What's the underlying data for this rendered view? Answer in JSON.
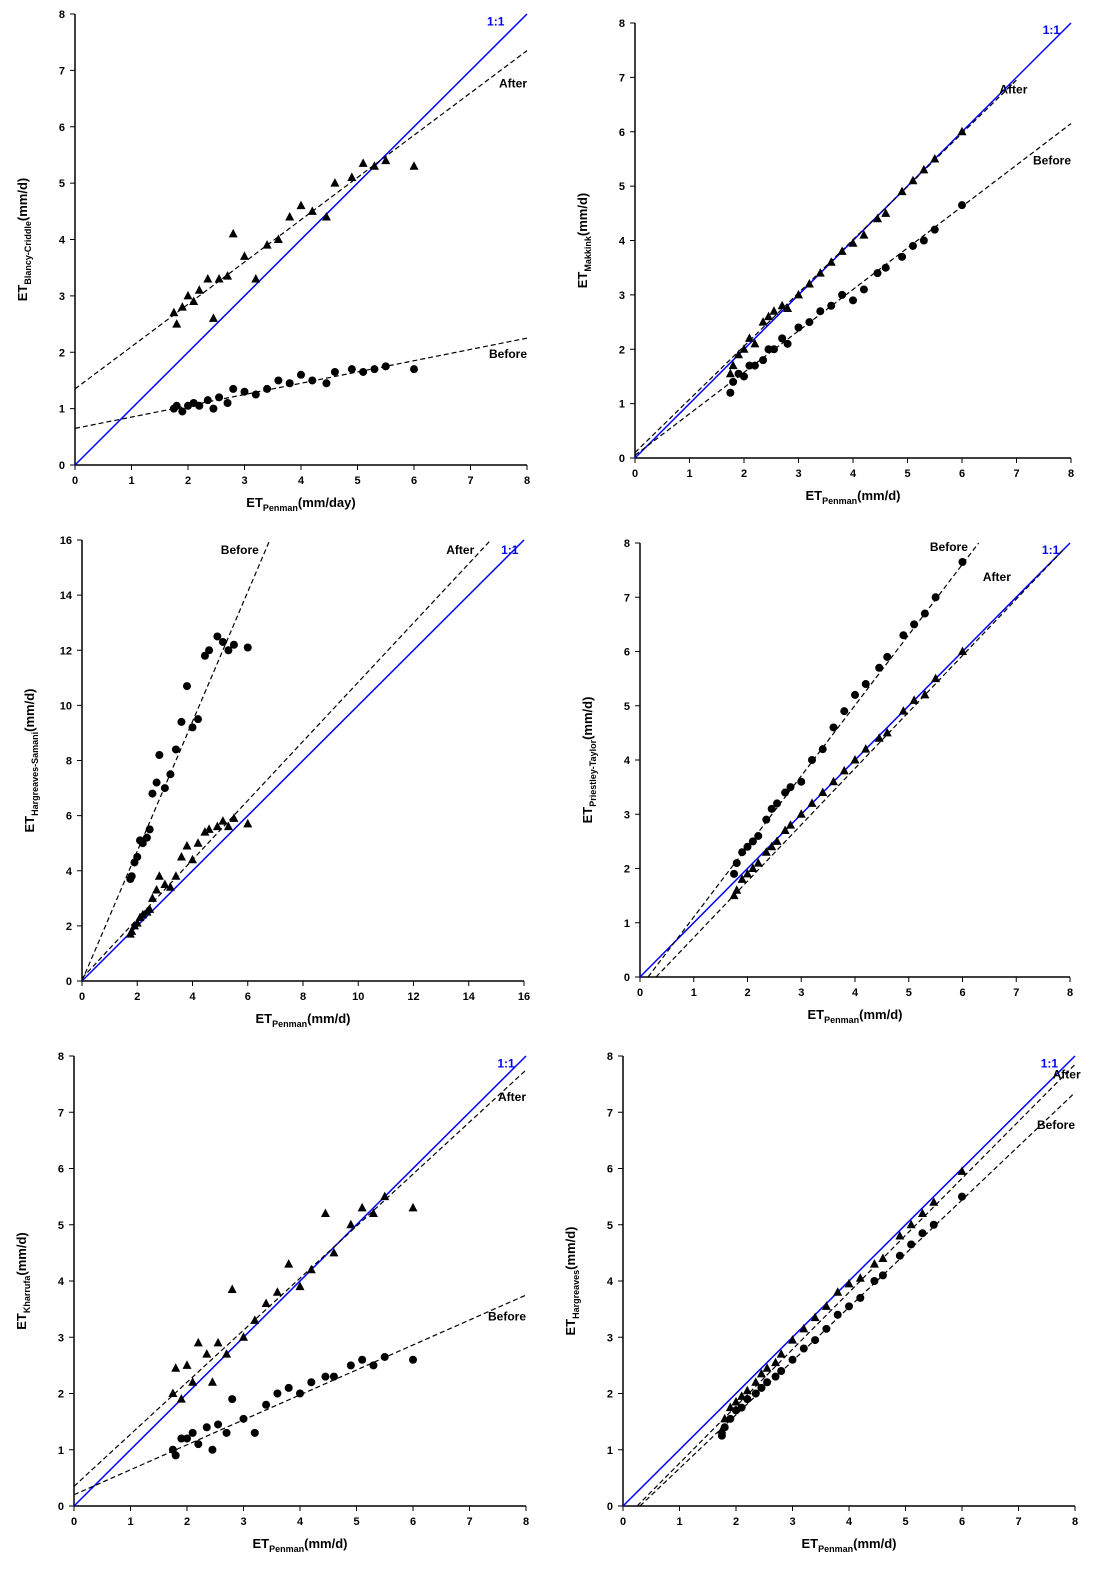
{
  "chart_data": [
    {
      "type": "scatter",
      "xlabel": [
        "ET",
        "Penman",
        "(mm/day)"
      ],
      "ylabel": [
        "ET",
        "Blancy-Criddle",
        "(mm/d)"
      ],
      "xlim": [
        0,
        8
      ],
      "ylim": [
        0,
        8
      ],
      "xticks": [
        0,
        1,
        2,
        3,
        4,
        5,
        6,
        7,
        8
      ],
      "yticks": [
        0,
        1,
        2,
        3,
        4,
        5,
        6,
        7,
        8
      ],
      "x": [
        1.75,
        1.8,
        1.9,
        2.0,
        2.1,
        2.2,
        2.35,
        2.45,
        2.55,
        2.7,
        2.8,
        3.0,
        3.2,
        3.4,
        3.6,
        3.8,
        4.0,
        4.2,
        4.45,
        4.6,
        4.9,
        5.1,
        5.3,
        5.5,
        6.0
      ],
      "series": [
        {
          "name": "After",
          "marker": "triangle",
          "color": "#000000",
          "values": [
            2.7,
            2.5,
            2.8,
            3.0,
            2.9,
            3.1,
            3.3,
            2.6,
            3.3,
            3.35,
            4.1,
            3.7,
            3.3,
            3.9,
            4.0,
            4.4,
            4.6,
            4.5,
            4.4,
            5.0,
            5.1,
            5.35,
            5.3,
            5.4,
            5.3
          ],
          "fit": {
            "x": [
              0,
              8
            ],
            "values": [
              1.35,
              7.35
            ]
          }
        },
        {
          "name": "Before",
          "marker": "circle",
          "color": "#000000",
          "values": [
            1.0,
            1.05,
            0.95,
            1.05,
            1.1,
            1.05,
            1.15,
            1.0,
            1.2,
            1.1,
            1.35,
            1.3,
            1.25,
            1.35,
            1.5,
            1.45,
            1.6,
            1.5,
            1.45,
            1.65,
            1.7,
            1.65,
            1.7,
            1.75,
            1.7
          ],
          "fit": {
            "x": [
              0,
              8
            ],
            "values": [
              0.65,
              2.25
            ]
          }
        }
      ],
      "identity": {
        "name": "1:1",
        "color": "#0000ff",
        "x": [
          0,
          8
        ],
        "values": [
          0,
          8
        ]
      }
    },
    {
      "type": "scatter",
      "xlabel": [
        "ET",
        "Penman",
        "(mm/d)"
      ],
      "ylabel": [
        "ET",
        "Makkink",
        "(mm/d)"
      ],
      "xlim": [
        0,
        8
      ],
      "ylim": [
        0,
        8
      ],
      "xticks": [
        0,
        1,
        2,
        3,
        4,
        5,
        6,
        7,
        8
      ],
      "yticks": [
        0,
        1,
        2,
        3,
        4,
        5,
        6,
        7,
        8
      ],
      "x": [
        1.75,
        1.8,
        1.9,
        2.0,
        2.1,
        2.2,
        2.35,
        2.45,
        2.55,
        2.7,
        2.8,
        3.0,
        3.2,
        3.4,
        3.6,
        3.8,
        4.0,
        4.2,
        4.45,
        4.6,
        4.9,
        5.1,
        5.3,
        5.5,
        6.0
      ],
      "series": [
        {
          "name": "After",
          "marker": "triangle",
          "color": "#000000",
          "values": [
            1.55,
            1.7,
            1.9,
            2.0,
            2.2,
            2.1,
            2.5,
            2.6,
            2.7,
            2.8,
            2.75,
            3.0,
            3.2,
            3.4,
            3.6,
            3.8,
            3.95,
            4.1,
            4.4,
            4.5,
            4.9,
            5.1,
            5.3,
            5.5,
            6.0
          ],
          "fit": {
            "x": [
              0,
              7
            ],
            "values": [
              0.1,
              6.95
            ]
          }
        },
        {
          "name": "Before",
          "marker": "circle",
          "color": "#000000",
          "values": [
            1.2,
            1.4,
            1.55,
            1.5,
            1.7,
            1.7,
            1.8,
            2.0,
            2.0,
            2.2,
            2.1,
            2.4,
            2.5,
            2.7,
            2.8,
            3.0,
            2.9,
            3.1,
            3.4,
            3.5,
            3.7,
            3.9,
            4.0,
            4.2,
            4.65
          ],
          "fit": {
            "x": [
              0,
              8
            ],
            "values": [
              0.05,
              6.15
            ]
          }
        }
      ],
      "identity": {
        "name": "1:1",
        "color": "#0000ff",
        "x": [
          0,
          8
        ],
        "values": [
          0,
          8
        ]
      }
    },
    {
      "type": "scatter",
      "xlabel": [
        "ET",
        "Penman",
        "(mm/d)"
      ],
      "ylabel": [
        "ET",
        "Hargreaves-Samani",
        "(mm/d)"
      ],
      "xlim": [
        0,
        16
      ],
      "ylim": [
        0,
        16
      ],
      "xticks": [
        0,
        2,
        4,
        6,
        8,
        10,
        12,
        14,
        16
      ],
      "yticks": [
        0,
        2,
        4,
        6,
        8,
        10,
        12,
        14,
        16
      ],
      "x": [
        1.75,
        1.8,
        1.9,
        2.0,
        2.1,
        2.2,
        2.35,
        2.45,
        2.55,
        2.7,
        2.8,
        3.0,
        3.2,
        3.4,
        3.6,
        3.8,
        4.0,
        4.2,
        4.45,
        4.6,
        4.9,
        5.1,
        5.3,
        5.5,
        6.0
      ],
      "series": [
        {
          "name": "After",
          "marker": "triangle",
          "color": "#000000",
          "values": [
            1.7,
            1.8,
            2.0,
            2.1,
            2.3,
            2.4,
            2.5,
            2.6,
            3.0,
            3.3,
            3.8,
            3.5,
            3.4,
            3.8,
            4.5,
            4.9,
            4.4,
            5.0,
            5.4,
            5.5,
            5.6,
            5.8,
            5.6,
            5.9,
            5.7
          ],
          "fit": {
            "x": [
              0,
              14.8
            ],
            "values": [
              0.1,
              16
            ]
          }
        },
        {
          "name": "Before",
          "marker": "circle",
          "color": "#000000",
          "values": [
            3.7,
            3.8,
            4.3,
            4.5,
            5.1,
            5.0,
            5.2,
            5.5,
            6.8,
            7.2,
            8.2,
            7.0,
            7.5,
            8.4,
            9.4,
            10.7,
            9.2,
            9.5,
            11.8,
            12.0,
            12.5,
            12.3,
            12.0,
            12.2,
            12.1
          ],
          "fit": {
            "x": [
              0,
              6.8
            ],
            "values": [
              0,
              16
            ]
          }
        }
      ],
      "identity": {
        "name": "1:1",
        "color": "#0000ff",
        "x": [
          0,
          16
        ],
        "values": [
          0,
          16
        ]
      }
    },
    {
      "type": "scatter",
      "xlabel": [
        "ET",
        "Penman",
        "(mm/d)"
      ],
      "ylabel": [
        "ET",
        "Priestley-Taylor",
        "(mm/d)"
      ],
      "xlim": [
        0,
        8
      ],
      "ylim": [
        0,
        8
      ],
      "xticks": [
        0,
        1,
        2,
        3,
        4,
        5,
        6,
        7,
        8
      ],
      "yticks": [
        0,
        1,
        2,
        3,
        4,
        5,
        6,
        7,
        8
      ],
      "x": [
        1.75,
        1.8,
        1.9,
        2.0,
        2.1,
        2.2,
        2.35,
        2.45,
        2.55,
        2.7,
        2.8,
        3.0,
        3.2,
        3.4,
        3.6,
        3.8,
        4.0,
        4.2,
        4.45,
        4.6,
        4.9,
        5.1,
        5.3,
        5.5,
        6.0
      ],
      "series": [
        {
          "name": "After",
          "marker": "triangle",
          "color": "#000000",
          "values": [
            1.5,
            1.6,
            1.8,
            1.9,
            2.0,
            2.1,
            2.3,
            2.4,
            2.5,
            2.7,
            2.8,
            3.0,
            3.2,
            3.4,
            3.6,
            3.8,
            4.0,
            4.2,
            4.4,
            4.5,
            4.9,
            5.1,
            5.2,
            5.5,
            6.0
          ],
          "fit": {
            "x": [
              0.3,
              7.9
            ],
            "values": [
              0,
              7.9
            ]
          }
        },
        {
          "name": "Before",
          "marker": "circle",
          "color": "#000000",
          "values": [
            1.9,
            2.1,
            2.3,
            2.4,
            2.5,
            2.6,
            2.9,
            3.1,
            3.2,
            3.4,
            3.5,
            3.6,
            4.0,
            4.2,
            4.6,
            4.9,
            5.2,
            5.4,
            5.7,
            5.9,
            6.3,
            6.5,
            6.7,
            7.0,
            7.65
          ],
          "fit": {
            "x": [
              0.15,
              6.3
            ],
            "values": [
              0,
              8
            ]
          }
        }
      ],
      "identity": {
        "name": "1:1",
        "color": "#0000ff",
        "x": [
          0,
          8
        ],
        "values": [
          0,
          8
        ]
      }
    },
    {
      "type": "scatter",
      "xlabel": [
        "ET",
        "Penman",
        "(mm/d)"
      ],
      "ylabel": [
        "ET",
        "Kharrufa",
        "(mm/d)"
      ],
      "xlim": [
        0,
        8
      ],
      "ylim": [
        0,
        8
      ],
      "xticks": [
        0,
        1,
        2,
        3,
        4,
        5,
        6,
        7,
        8
      ],
      "yticks": [
        0,
        1,
        2,
        3,
        4,
        5,
        6,
        7,
        8
      ],
      "x": [
        1.75,
        1.8,
        1.9,
        2.0,
        2.1,
        2.2,
        2.35,
        2.45,
        2.55,
        2.7,
        2.8,
        3.0,
        3.2,
        3.4,
        3.6,
        3.8,
        4.0,
        4.2,
        4.45,
        4.6,
        4.9,
        5.1,
        5.3,
        5.5,
        6.0
      ],
      "series": [
        {
          "name": "After",
          "marker": "triangle",
          "color": "#000000",
          "values": [
            2.0,
            2.45,
            1.9,
            2.5,
            2.2,
            2.9,
            2.7,
            2.2,
            2.9,
            2.7,
            3.85,
            3.0,
            3.3,
            3.6,
            3.8,
            4.3,
            3.9,
            4.2,
            5.2,
            4.5,
            5.0,
            5.3,
            5.2,
            5.5,
            5.3
          ],
          "fit": {
            "x": [
              0,
              8
            ],
            "values": [
              0.35,
              7.75
            ]
          }
        },
        {
          "name": "Before",
          "marker": "circle",
          "color": "#000000",
          "values": [
            1.0,
            0.9,
            1.2,
            1.2,
            1.3,
            1.1,
            1.4,
            1.0,
            1.45,
            1.3,
            1.9,
            1.55,
            1.3,
            1.8,
            2.0,
            2.1,
            2.0,
            2.2,
            2.3,
            2.3,
            2.5,
            2.6,
            2.5,
            2.65,
            2.6
          ],
          "fit": {
            "x": [
              0,
              8
            ],
            "values": [
              0.2,
              3.75
            ]
          }
        }
      ],
      "identity": {
        "name": "1:1",
        "color": "#0000ff",
        "x": [
          0,
          8
        ],
        "values": [
          0,
          8
        ]
      }
    },
    {
      "type": "scatter",
      "xlabel": [
        "ET",
        "Penman",
        "(mm/d)"
      ],
      "ylabel": [
        "ET",
        "Hargreaves",
        "(mm/d)"
      ],
      "xlim": [
        0,
        8
      ],
      "ylim": [
        0,
        8
      ],
      "xticks": [
        0,
        1,
        2,
        3,
        4,
        5,
        6,
        7,
        8
      ],
      "yticks": [
        0,
        1,
        2,
        3,
        4,
        5,
        6,
        7,
        8
      ],
      "x": [
        1.75,
        1.8,
        1.9,
        2.0,
        2.1,
        2.2,
        2.35,
        2.45,
        2.55,
        2.7,
        2.8,
        3.0,
        3.2,
        3.4,
        3.6,
        3.8,
        4.0,
        4.2,
        4.45,
        4.6,
        4.9,
        5.1,
        5.3,
        5.5,
        6.0
      ],
      "series": [
        {
          "name": "After",
          "marker": "triangle",
          "color": "#000000",
          "values": [
            1.35,
            1.55,
            1.75,
            1.85,
            1.95,
            2.05,
            2.2,
            2.35,
            2.45,
            2.55,
            2.7,
            2.95,
            3.15,
            3.35,
            3.55,
            3.8,
            3.95,
            4.05,
            4.3,
            4.4,
            4.8,
            5.0,
            5.2,
            5.4,
            5.95
          ],
          "fit": {
            "x": [
              0.25,
              8
            ],
            "values": [
              0,
              7.85
            ]
          }
        },
        {
          "name": "Before",
          "marker": "circle",
          "color": "#000000",
          "values": [
            1.25,
            1.4,
            1.55,
            1.7,
            1.75,
            1.9,
            2.0,
            2.1,
            2.2,
            2.3,
            2.4,
            2.6,
            2.8,
            2.95,
            3.15,
            3.4,
            3.55,
            3.7,
            4.0,
            4.1,
            4.45,
            4.65,
            4.85,
            5.0,
            5.5
          ],
          "fit": {
            "x": [
              0.3,
              8
            ],
            "values": [
              0,
              7.35
            ]
          }
        }
      ],
      "identity": {
        "name": "1:1",
        "color": "#0000ff",
        "x": [
          0,
          8
        ],
        "values": [
          0,
          8
        ]
      }
    }
  ]
}
